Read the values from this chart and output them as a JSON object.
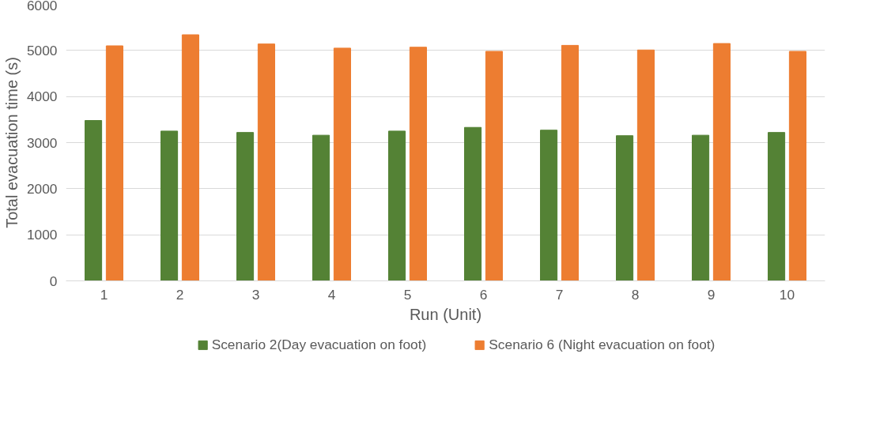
{
  "chart_data": {
    "type": "bar",
    "xlabel": "Run (Unit)",
    "ylabel": "Total evacuation time (s)",
    "categories": [
      "1",
      "2",
      "3",
      "4",
      "5",
      "6",
      "7",
      "8",
      "9",
      "10"
    ],
    "series": [
      {
        "name": "Scenario 2(Day evacuation on foot)",
        "color": "#548235",
        "values": [
          3480,
          3250,
          3220,
          3160,
          3250,
          3330,
          3270,
          3150,
          3160,
          3220
        ]
      },
      {
        "name": "Scenario 6 (Night evacuation on foot)",
        "color": "#ed7d31",
        "values": [
          5100,
          5340,
          5140,
          5050,
          5070,
          4980,
          5110,
          5010,
          5150,
          4980
        ]
      }
    ],
    "ylim": [
      0,
      6000
    ],
    "yticks": [
      0,
      1000,
      2000,
      3000,
      4000,
      5000,
      6000
    ],
    "grid": "y",
    "legend": "bottom"
  }
}
